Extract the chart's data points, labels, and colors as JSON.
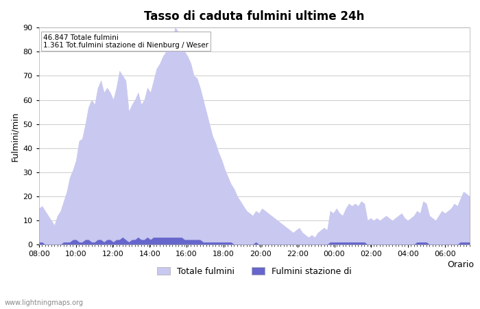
{
  "title": "Tasso di caduta fulmini ultime 24h",
  "xlabel": "Orario",
  "ylabel": "Fulmini/min",
  "annotation_line1": "46.847 Totale fulmini",
  "annotation_line2": "1.361 Tot.fulmini stazione di Nienburg / Weser",
  "ylim": [
    0,
    90
  ],
  "yticks": [
    0,
    10,
    20,
    30,
    40,
    50,
    60,
    70,
    80,
    90
  ],
  "xtick_labels": [
    "08:00",
    "10:00",
    "12:00",
    "14:00",
    "16:00",
    "18:00",
    "20:00",
    "22:00",
    "00:00",
    "02:00",
    "04:00",
    "06:00"
  ],
  "legend_label_total": "Totale fulmini",
  "legend_label_station": "Fulmini stazione di",
  "color_total": "#c8c8f0",
  "color_station": "#6666cc",
  "background_color": "#ffffff",
  "grid_color": "#cccccc",
  "watermark": "www.lightningmaps.org",
  "total_values": [
    15,
    16,
    14,
    12,
    10,
    8,
    12,
    14,
    18,
    22,
    28,
    31,
    35,
    43,
    44,
    50,
    57,
    60,
    58,
    65,
    68,
    63,
    65,
    63,
    60,
    65,
    72,
    70,
    68,
    55,
    58,
    60,
    63,
    58,
    60,
    65,
    63,
    68,
    73,
    75,
    78,
    80,
    82,
    85,
    90,
    88,
    82,
    80,
    78,
    75,
    70,
    69,
    65,
    60,
    55,
    50,
    45,
    42,
    38,
    35,
    31,
    28,
    25,
    23,
    20,
    18,
    16,
    14,
    13,
    12,
    14,
    13,
    15,
    14,
    13,
    12,
    11,
    10,
    9,
    8,
    7,
    6,
    5,
    6,
    7,
    5,
    4,
    3,
    4,
    3,
    5,
    6,
    7,
    6,
    14,
    13,
    15,
    13,
    12,
    15,
    17,
    16,
    17,
    16,
    18,
    17,
    10,
    11,
    10,
    11,
    10,
    11,
    12,
    11,
    10,
    11,
    12,
    13,
    11,
    10,
    11,
    12,
    14,
    13,
    18,
    17,
    12,
    11,
    10,
    12,
    14,
    13,
    14,
    15,
    17,
    16,
    19,
    22,
    21,
    20
  ],
  "station_values": [
    1,
    1,
    0,
    0,
    0,
    0,
    0,
    0,
    1,
    1,
    1,
    2,
    2,
    1,
    1,
    2,
    2,
    1,
    1,
    2,
    2,
    1,
    2,
    2,
    1,
    2,
    2,
    3,
    2,
    1,
    2,
    2,
    3,
    2,
    2,
    3,
    2,
    3,
    3,
    3,
    3,
    3,
    3,
    3,
    3,
    3,
    3,
    2,
    2,
    2,
    2,
    2,
    2,
    1,
    1,
    1,
    1,
    1,
    1,
    1,
    1,
    1,
    1,
    0,
    0,
    0,
    0,
    0,
    0,
    0,
    1,
    0,
    0,
    0,
    0,
    0,
    0,
    0,
    0,
    0,
    0,
    0,
    0,
    0,
    0,
    0,
    0,
    0,
    0,
    0,
    0,
    0,
    0,
    0,
    1,
    1,
    1,
    1,
    1,
    1,
    1,
    1,
    1,
    1,
    1,
    1,
    0,
    0,
    0,
    0,
    0,
    0,
    0,
    0,
    0,
    0,
    0,
    0,
    0,
    0,
    0,
    0,
    1,
    1,
    1,
    1,
    0,
    0,
    0,
    0,
    0,
    0,
    0,
    0,
    0,
    0,
    1,
    1,
    1,
    1
  ]
}
